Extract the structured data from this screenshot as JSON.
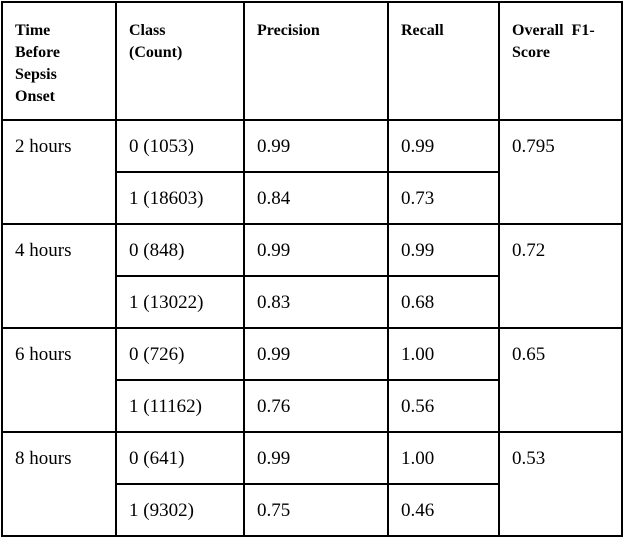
{
  "table": {
    "headers": {
      "time": [
        "Time",
        "Before",
        "Sepsis",
        "Onset"
      ],
      "class": [
        "Class",
        "(Count)"
      ],
      "precision": "Precision",
      "recall": "Recall",
      "f1": [
        "Overall  F1-",
        "Score"
      ]
    },
    "groups": [
      {
        "time": "2 hours",
        "f1": "0.795",
        "rows": [
          {
            "class": "0 (1053)",
            "precision": "0.99",
            "recall": "0.99"
          },
          {
            "class": "1 (18603)",
            "precision": "0.84",
            "recall": "0.73"
          }
        ]
      },
      {
        "time": "4 hours",
        "f1": "0.72",
        "rows": [
          {
            "class": "0 (848)",
            "precision": "0.99",
            "recall": "0.99"
          },
          {
            "class": "1 (13022)",
            "precision": "0.83",
            "recall": "0.68"
          }
        ]
      },
      {
        "time": "6 hours",
        "f1": "0.65",
        "rows": [
          {
            "class": "0 (726)",
            "precision": "0.99",
            "recall": "1.00"
          },
          {
            "class": "1 (11162)",
            "precision": "0.76",
            "recall": "0.56"
          }
        ]
      },
      {
        "time": "8 hours",
        "f1": "0.53",
        "rows": [
          {
            "class": "0 (641)",
            "precision": "0.99",
            "recall": "1.00"
          },
          {
            "class": "1 (9302)",
            "precision": "0.75",
            "recall": "0.46"
          }
        ]
      }
    ]
  }
}
